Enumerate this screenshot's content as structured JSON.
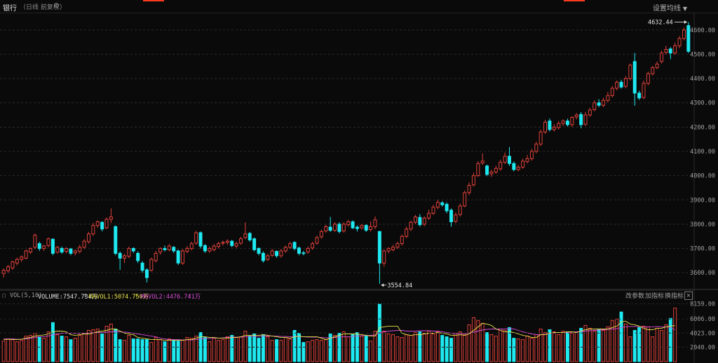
{
  "header": {
    "title": "银行",
    "subtitle": "（日线 前复权）",
    "gear_icon": "gear-icon",
    "ma_settings": "设置均线",
    "caret_icon": "caret-down-icon"
  },
  "price_chart": {
    "price_axis_labels": [
      "4600.00",
      "4500.00",
      "4400.00",
      "4300.00",
      "4200.00",
      "4100.00",
      "4000.00",
      "3900.00",
      "3800.00",
      "3700.00",
      "3600.00"
    ],
    "high_marker": "4632.44",
    "low_marker": "3554.84",
    "up_color": "#e0413a",
    "down_color": "#1ee8f0"
  },
  "volume_bar": {
    "indicator": "VOL(5,10)",
    "volume": "VOLUME:7547.734万",
    "mavol1": "MAVOL1:5074.750万",
    "mavol2": "MAVOL2:4476.741万",
    "arrow_up": "↑",
    "change_params": "改参数",
    "add_indicator": "加指标",
    "switch_indicator": "换指标",
    "close_icon": "close-icon",
    "close_glyph": "×",
    "volume_axis_labels": [
      "8159.00",
      "6006.00",
      "4023.00",
      "2040.00"
    ],
    "mavol1_color": "#e8e34a",
    "mavol2_color": "#d64bd6"
  },
  "chart_data": {
    "type": "candlestick",
    "price_range": [
      3540,
      4660
    ],
    "volume_range": [
      0,
      8500
    ],
    "candles": [
      [
        3597,
        3610,
        3580,
        3618
      ],
      [
        3608,
        3625,
        3600,
        3632
      ],
      [
        3620,
        3645,
        3612,
        3650
      ],
      [
        3640,
        3655,
        3630,
        3662
      ],
      [
        3655,
        3665,
        3645,
        3672
      ],
      [
        3660,
        3690,
        3655,
        3695
      ],
      [
        3685,
        3700,
        3678,
        3705
      ],
      [
        3705,
        3755,
        3698,
        3762
      ],
      [
        3720,
        3700,
        3690,
        3728
      ],
      [
        3700,
        3710,
        3690,
        3715
      ],
      [
        3712,
        3740,
        3705,
        3745
      ],
      [
        3738,
        3680,
        3672,
        3742
      ],
      [
        3685,
        3705,
        3678,
        3710
      ],
      [
        3700,
        3685,
        3678,
        3708
      ],
      [
        3688,
        3700,
        3680,
        3705
      ],
      [
        3698,
        3680,
        3672,
        3702
      ],
      [
        3682,
        3690,
        3672,
        3695
      ],
      [
        3688,
        3705,
        3680,
        3715
      ],
      [
        3705,
        3730,
        3698,
        3738
      ],
      [
        3728,
        3760,
        3720,
        3768
      ],
      [
        3760,
        3795,
        3752,
        3805
      ],
      [
        3795,
        3810,
        3785,
        3815
      ],
      [
        3808,
        3780,
        3770,
        3812
      ],
      [
        3785,
        3820,
        3780,
        3828
      ],
      [
        3820,
        3830,
        3805,
        3865
      ],
      [
        3790,
        3680,
        3672,
        3795
      ],
      [
        3680,
        3660,
        3612,
        3688
      ],
      [
        3660,
        3670,
        3640,
        3678
      ],
      [
        3668,
        3700,
        3660,
        3708
      ],
      [
        3700,
        3690,
        3682,
        3705
      ],
      [
        3680,
        3650,
        3640,
        3688
      ],
      [
        3640,
        3610,
        3600,
        3648
      ],
      [
        3612,
        3580,
        3560,
        3618
      ],
      [
        3610,
        3655,
        3605,
        3662
      ],
      [
        3650,
        3680,
        3642,
        3690
      ],
      [
        3685,
        3700,
        3675,
        3705
      ],
      [
        3700,
        3695,
        3688,
        3712
      ],
      [
        3695,
        3710,
        3688,
        3718
      ],
      [
        3705,
        3690,
        3682,
        3710
      ],
      [
        3690,
        3640,
        3632,
        3695
      ],
      [
        3640,
        3690,
        3632,
        3698
      ],
      [
        3688,
        3700,
        3680,
        3710
      ],
      [
        3700,
        3720,
        3692,
        3728
      ],
      [
        3722,
        3765,
        3715,
        3772
      ],
      [
        3765,
        3710,
        3700,
        3770
      ],
      [
        3712,
        3690,
        3682,
        3718
      ],
      [
        3690,
        3700,
        3682,
        3708
      ],
      [
        3695,
        3710,
        3688,
        3718
      ],
      [
        3708,
        3720,
        3700,
        3728
      ],
      [
        3722,
        3725,
        3712,
        3732
      ],
      [
        3725,
        3730,
        3715,
        3738
      ],
      [
        3730,
        3712,
        3705,
        3735
      ],
      [
        3710,
        3720,
        3702,
        3728
      ],
      [
        3722,
        3740,
        3715,
        3748
      ],
      [
        3745,
        3760,
        3738,
        3808
      ],
      [
        3762,
        3735,
        3728,
        3768
      ],
      [
        3740,
        3695,
        3688,
        3745
      ],
      [
        3700,
        3680,
        3672,
        3705
      ],
      [
        3680,
        3650,
        3642,
        3688
      ],
      [
        3655,
        3670,
        3648,
        3678
      ],
      [
        3672,
        3690,
        3665,
        3698
      ],
      [
        3688,
        3670,
        3662,
        3692
      ],
      [
        3670,
        3690,
        3662,
        3698
      ],
      [
        3690,
        3705,
        3682,
        3712
      ],
      [
        3705,
        3720,
        3698,
        3728
      ],
      [
        3725,
        3700,
        3692,
        3730
      ],
      [
        3702,
        3680,
        3672,
        3708
      ],
      [
        3682,
        3680,
        3672,
        3690
      ],
      [
        3685,
        3700,
        3678,
        3708
      ],
      [
        3702,
        3720,
        3695,
        3728
      ],
      [
        3722,
        3745,
        3715,
        3752
      ],
      [
        3748,
        3770,
        3740,
        3778
      ],
      [
        3772,
        3790,
        3765,
        3798
      ],
      [
        3788,
        3775,
        3768,
        3830
      ],
      [
        3775,
        3800,
        3768,
        3808
      ],
      [
        3800,
        3770,
        3762,
        3808
      ],
      [
        3772,
        3800,
        3765,
        3808
      ],
      [
        3798,
        3810,
        3790,
        3818
      ],
      [
        3810,
        3785,
        3780,
        3816
      ],
      [
        3788,
        3782,
        3770,
        3795
      ],
      [
        3785,
        3795,
        3778,
        3800
      ],
      [
        3795,
        3775,
        3768,
        3800
      ],
      [
        3778,
        3790,
        3770,
        3812
      ],
      [
        3790,
        3818,
        3780,
        3832
      ],
      [
        3770,
        3640,
        3554.84,
        3772
      ],
      [
        3640,
        3690,
        3625,
        3695
      ],
      [
        3690,
        3700,
        3680,
        3705
      ],
      [
        3695,
        3705,
        3688,
        3715
      ],
      [
        3705,
        3720,
        3698,
        3728
      ],
      [
        3720,
        3750,
        3712,
        3758
      ],
      [
        3750,
        3780,
        3742,
        3790
      ],
      [
        3780,
        3808,
        3772,
        3815
      ],
      [
        3808,
        3830,
        3800,
        3838
      ],
      [
        3828,
        3798,
        3790,
        3842
      ],
      [
        3800,
        3825,
        3792,
        3832
      ],
      [
        3825,
        3845,
        3818,
        3860
      ],
      [
        3845,
        3870,
        3838,
        3880
      ],
      [
        3870,
        3890,
        3862,
        3900
      ],
      [
        3888,
        3880,
        3872,
        3895
      ],
      [
        3882,
        3855,
        3845,
        3890
      ],
      [
        3858,
        3810,
        3790,
        3865
      ],
      [
        3812,
        3838,
        3805,
        3848
      ],
      [
        3840,
        3875,
        3832,
        3885
      ],
      [
        3875,
        3930,
        3870,
        3938
      ],
      [
        3930,
        3960,
        3920,
        3972
      ],
      [
        3962,
        4000,
        3955,
        4012
      ],
      [
        4000,
        4050,
        3995,
        4060
      ],
      [
        4052,
        4060,
        4045,
        4092
      ],
      [
        4040,
        4005,
        3998,
        4045
      ],
      [
        4008,
        4015,
        3995,
        4025
      ],
      [
        4015,
        4030,
        4008,
        4040
      ],
      [
        4028,
        4055,
        4020,
        4065
      ],
      [
        4055,
        4080,
        4048,
        4095
      ],
      [
        4080,
        4050,
        4040,
        4118
      ],
      [
        4050,
        4025,
        4018,
        4058
      ],
      [
        4025,
        4035,
        4018,
        4045
      ],
      [
        4035,
        4060,
        4028,
        4070
      ],
      [
        4058,
        4070,
        4050,
        4085
      ],
      [
        4070,
        4100,
        4062,
        4110
      ],
      [
        4100,
        4130,
        4092,
        4140
      ],
      [
        4130,
        4180,
        4122,
        4190
      ],
      [
        4180,
        4220,
        4172,
        4230
      ],
      [
        4225,
        4190,
        4182,
        4235
      ],
      [
        4190,
        4200,
        4182,
        4212
      ],
      [
        4198,
        4215,
        4190,
        4225
      ],
      [
        4215,
        4225,
        4205,
        4232
      ],
      [
        4225,
        4210,
        4202,
        4235
      ],
      [
        4210,
        4240,
        4200,
        4245
      ],
      [
        4242,
        4250,
        4232,
        4258
      ],
      [
        4252,
        4210,
        4195,
        4262
      ],
      [
        4212,
        4250,
        4205,
        4262
      ],
      [
        4250,
        4270,
        4242,
        4280
      ],
      [
        4272,
        4300,
        4265,
        4310
      ],
      [
        4300,
        4290,
        4282,
        4315
      ],
      [
        4290,
        4310,
        4282,
        4320
      ],
      [
        4310,
        4330,
        4302,
        4345
      ],
      [
        4330,
        4360,
        4322,
        4370
      ],
      [
        4360,
        4385,
        4352,
        4392
      ],
      [
        4385,
        4365,
        4358,
        4395
      ],
      [
        4368,
        4400,
        4360,
        4410
      ],
      [
        4400,
        4455,
        4392,
        4462
      ],
      [
        4470,
        4340,
        4288,
        4505
      ],
      [
        4340,
        4320,
        4312,
        4350
      ],
      [
        4322,
        4380,
        4315,
        4392
      ],
      [
        4380,
        4420,
        4372,
        4428
      ],
      [
        4420,
        4445,
        4412,
        4452
      ],
      [
        4445,
        4460,
        4438,
        4470
      ],
      [
        4470,
        4505,
        4462,
        4515
      ],
      [
        4508,
        4520,
        4500,
        4535
      ],
      [
        4522,
        4505,
        4480,
        4530
      ],
      [
        4505,
        4535,
        4498,
        4548
      ],
      [
        4535,
        4565,
        4525,
        4575
      ],
      [
        4565,
        4600,
        4558,
        4610
      ],
      [
        4618,
        4512,
        4505,
        4632.44
      ]
    ],
    "volume": [
      2900,
      3200,
      3100,
      2800,
      3000,
      3600,
      3700,
      4000,
      3500,
      3300,
      4200,
      5500,
      3800,
      3600,
      3500,
      3100,
      3300,
      3700,
      4000,
      4400,
      4500,
      4600,
      3900,
      5000,
      5300,
      4600,
      3100,
      3000,
      3700,
      3200,
      3200,
      3100,
      3100,
      2700,
      3400,
      3100,
      2800,
      3200,
      3000,
      2900,
      3000,
      3400,
      3300,
      3600,
      4100,
      3400,
      2800,
      3300,
      3000,
      3100,
      3500,
      3700,
      3400,
      3500,
      4300,
      3600,
      3900,
      3300,
      3800,
      3500,
      3000,
      3100,
      3000,
      3400,
      3200,
      4400,
      4000,
      2700,
      2800,
      3000,
      3100,
      3000,
      3100,
      3900,
      3700,
      4000,
      4200,
      3500,
      3800,
      4100,
      3600,
      3600,
      2900,
      4300,
      8159,
      4300,
      3900,
      3800,
      3500,
      3400,
      3800,
      3700,
      4100,
      4200,
      4000,
      4300,
      3900,
      4200,
      3700,
      3500,
      3300,
      4000,
      4200,
      3800,
      5200,
      6200,
      5800,
      5400,
      4100,
      3800,
      3600,
      4600,
      4400,
      4800,
      3300,
      3200,
      3100,
      3600,
      3300,
      3800,
      4600,
      4100,
      4500,
      4200,
      3800,
      4300,
      4200,
      4000,
      4200,
      4700,
      5100,
      4700,
      4300,
      4600,
      4400,
      4900,
      5800,
      6000,
      7000,
      5300,
      3500,
      4400,
      4800,
      5000,
      4900,
      3500,
      4700,
      4400,
      5200,
      6100,
      7547.734
    ],
    "mavol1": [
      3100,
      3150,
      3100,
      3100,
      3150,
      3300,
      3400,
      3600,
      3700,
      3750,
      3900,
      4200,
      4300,
      4300,
      4200,
      3800,
      3700,
      3800,
      3900,
      3900,
      4000,
      4200,
      4300,
      4400,
      4600,
      4600,
      4300,
      4000,
      3900,
      3800,
      3400,
      3300,
      3200,
      3100,
      3100,
      3100,
      3000,
      3000,
      3000,
      3000,
      3000,
      3100,
      3100,
      3300,
      3500,
      3500,
      3400,
      3400,
      3300,
      3300,
      3300,
      3400,
      3400,
      3500,
      3700,
      3700,
      3700,
      3700,
      3800,
      3700,
      3600,
      3500,
      3400,
      3400,
      3300,
      3500,
      3600,
      3500,
      3500,
      3500,
      3500,
      3300,
      3100,
      3300,
      3500,
      3700,
      3900,
      3900,
      3900,
      3900,
      3800,
      3700,
      3600,
      3600,
      4800,
      4900,
      5000,
      5000,
      5000,
      4000,
      3800,
      3700,
      3800,
      3800,
      3900,
      4000,
      4000,
      4100,
      4000,
      3900,
      3700,
      3700,
      3800,
      3700,
      3900,
      4400,
      4900,
      5400,
      5300,
      5100,
      4600,
      4400,
      4200,
      4200,
      4100,
      3900,
      3700,
      3600,
      3400,
      3400,
      3800,
      3800,
      4000,
      4100,
      4100,
      4100,
      4200,
      4200,
      4100,
      4300,
      4500,
      4600,
      4600,
      4600,
      4600,
      4600,
      4800,
      5000,
      5600,
      5700,
      5300,
      5200,
      5000,
      4700,
      4500,
      4500,
      4700,
      4700,
      4900,
      5000,
      5074.75
    ],
    "mavol2": [
      3200,
      3200,
      3200,
      3150,
      3150,
      3200,
      3300,
      3400,
      3500,
      3500,
      3600,
      3800,
      3900,
      4000,
      4000,
      4000,
      4000,
      4000,
      4000,
      4000,
      4100,
      4100,
      4100,
      4150,
      4200,
      4250,
      4200,
      4150,
      4100,
      4000,
      3900,
      3800,
      3700,
      3600,
      3500,
      3300,
      3200,
      3100,
      3100,
      3100,
      3050,
      3050,
      3050,
      3100,
      3200,
      3250,
      3250,
      3300,
      3300,
      3350,
      3400,
      3450,
      3450,
      3450,
      3500,
      3550,
      3550,
      3550,
      3600,
      3600,
      3600,
      3600,
      3550,
      3550,
      3500,
      3500,
      3550,
      3500,
      3450,
      3450,
      3450,
      3400,
      3350,
      3350,
      3400,
      3450,
      3500,
      3500,
      3550,
      3600,
      3650,
      3700,
      3700,
      3750,
      4100,
      4200,
      4300,
      4350,
      4400,
      4400,
      4300,
      4300,
      4300,
      4350,
      4350,
      4350,
      4300,
      4300,
      4200,
      4100,
      4000,
      3950,
      3950,
      3950,
      4000,
      4150,
      4300,
      4450,
      4550,
      4600,
      4600,
      4600,
      4600,
      4650,
      4600,
      4400,
      4200,
      4050,
      3900,
      3800,
      3800,
      3850,
      3950,
      4050,
      4100,
      4100,
      4100,
      4150,
      4200,
      4250,
      4300,
      4350,
      4400,
      4450,
      4500,
      4550,
      4600,
      4650,
      4800,
      4900,
      4950,
      4950,
      4950,
      4900,
      4900,
      4900,
      4950,
      4900,
      4900,
      4850,
      4476.741
    ]
  }
}
